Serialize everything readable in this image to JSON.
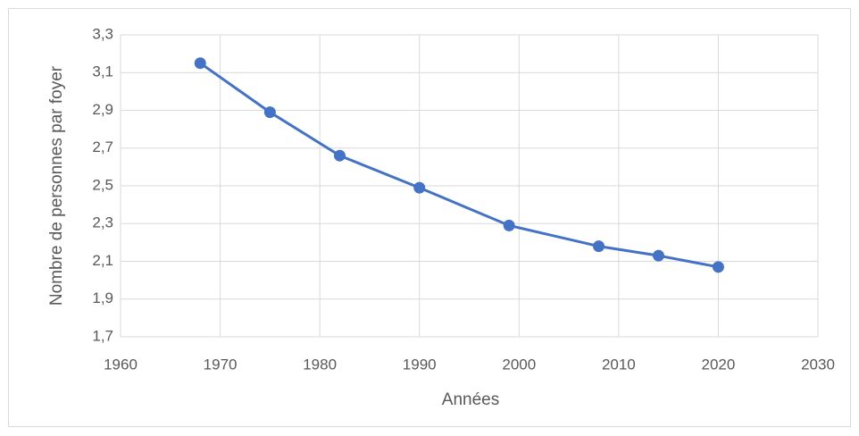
{
  "chart_data": {
    "type": "line",
    "x_label": "Années",
    "y_label": "Nombre de personnes par foyer",
    "x": [
      1968,
      1975,
      1982,
      1990,
      1999,
      2008,
      2014,
      2020
    ],
    "series": [
      {
        "name": "Nombre de personnes par foyer",
        "color": "#4472c4",
        "values": [
          3.15,
          2.89,
          2.66,
          2.49,
          2.29,
          2.18,
          2.13,
          2.07
        ]
      }
    ],
    "xlim": [
      1960,
      2030
    ],
    "xticks": [
      1960,
      1970,
      1980,
      1990,
      2000,
      2010,
      2020,
      2030
    ],
    "ylim": [
      1.7,
      3.3
    ],
    "yticks": [
      {
        "value": 1.7,
        "label": "1,7"
      },
      {
        "value": 1.9,
        "label": "1,9"
      },
      {
        "value": 2.1,
        "label": "2,1"
      },
      {
        "value": 2.3,
        "label": "2,3"
      },
      {
        "value": 2.5,
        "label": "2,5"
      },
      {
        "value": 2.7,
        "label": "2,7"
      },
      {
        "value": 2.9,
        "label": "2,9"
      },
      {
        "value": 3.1,
        "label": "3,1"
      },
      {
        "value": 3.3,
        "label": "3,3"
      }
    ],
    "grid": true,
    "legend": false
  }
}
